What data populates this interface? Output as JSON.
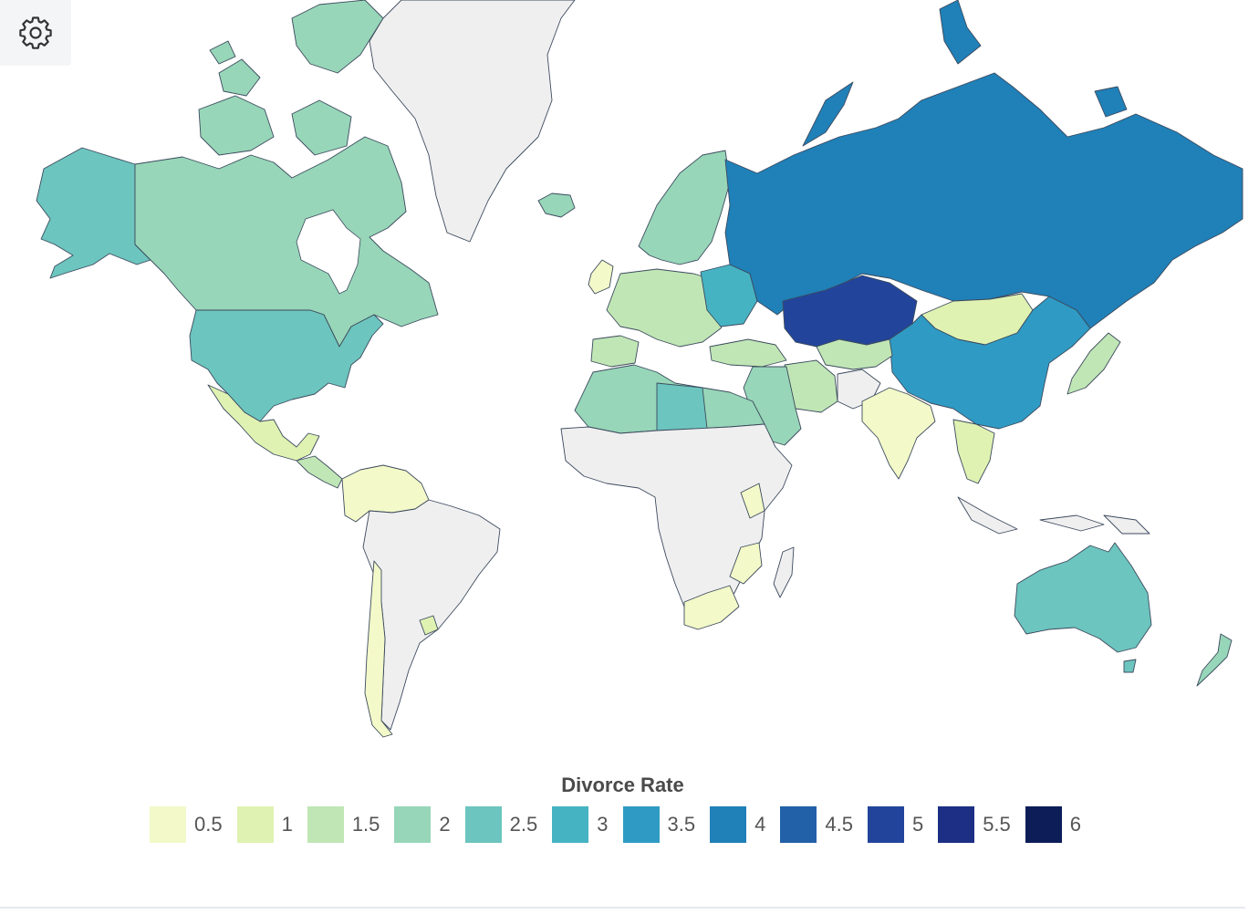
{
  "toolbar": {
    "settings_icon": "gear-icon"
  },
  "legend": {
    "title": "Divorce Rate",
    "items": [
      {
        "label": "0.5",
        "color": "#f3f9c8"
      },
      {
        "label": "1",
        "color": "#dff2b2"
      },
      {
        "label": "1.5",
        "color": "#c0e6b5"
      },
      {
        "label": "2",
        "color": "#97d6b8"
      },
      {
        "label": "2.5",
        "color": "#6cc5be"
      },
      {
        "label": "3",
        "color": "#46b3c3"
      },
      {
        "label": "3.5",
        "color": "#2f9bc4"
      },
      {
        "label": "4",
        "color": "#2080b8"
      },
      {
        "label": "4.5",
        "color": "#2260a8"
      },
      {
        "label": "5",
        "color": "#22459b"
      },
      {
        "label": "5.5",
        "color": "#1c2f84"
      },
      {
        "label": "6",
        "color": "#0d1d58"
      }
    ]
  },
  "no_data_color": "#efefef",
  "map_data": {
    "metric": "Divorce Rate",
    "countries": [
      {
        "name": "Russia",
        "value": 4
      },
      {
        "name": "Kazakhstan",
        "value": 4.5
      },
      {
        "name": "China",
        "value": 3.5
      },
      {
        "name": "Mongolia",
        "value": 1
      },
      {
        "name": "Belarus",
        "value": 3.5
      },
      {
        "name": "Ukraine",
        "value": 3
      },
      {
        "name": "United States",
        "value": 2.5
      },
      {
        "name": "Canada",
        "value": 2
      },
      {
        "name": "Alaska",
        "value": 2.5
      },
      {
        "name": "Mexico",
        "value": 1
      },
      {
        "name": "Colombia",
        "value": 0.5
      },
      {
        "name": "Venezuela",
        "value": 0.5
      },
      {
        "name": "Chile",
        "value": 0.5
      },
      {
        "name": "India",
        "value": 0.5
      },
      {
        "name": "Australia",
        "value": 2.5
      },
      {
        "name": "New Zealand",
        "value": 2
      },
      {
        "name": "Libya",
        "value": 2.5
      },
      {
        "name": "Algeria",
        "value": 1.5
      },
      {
        "name": "Egypt",
        "value": 2
      },
      {
        "name": "Saudi Arabia",
        "value": 2
      },
      {
        "name": "Iran",
        "value": 1.5
      },
      {
        "name": "Turkey",
        "value": 1.5
      },
      {
        "name": "Western Europe",
        "value": 1.5
      },
      {
        "name": "Scandinavia",
        "value": 2
      },
      {
        "name": "Iceland",
        "value": 2
      },
      {
        "name": "Japan",
        "value": 1.5
      },
      {
        "name": "Southeast Asia",
        "value": 1
      },
      {
        "name": "South Africa",
        "value": 0.5
      },
      {
        "name": "Mozambique",
        "value": 0.5
      },
      {
        "name": "Kenya",
        "value": 0.5
      },
      {
        "name": "Central Asia",
        "value": 1.5
      }
    ]
  }
}
